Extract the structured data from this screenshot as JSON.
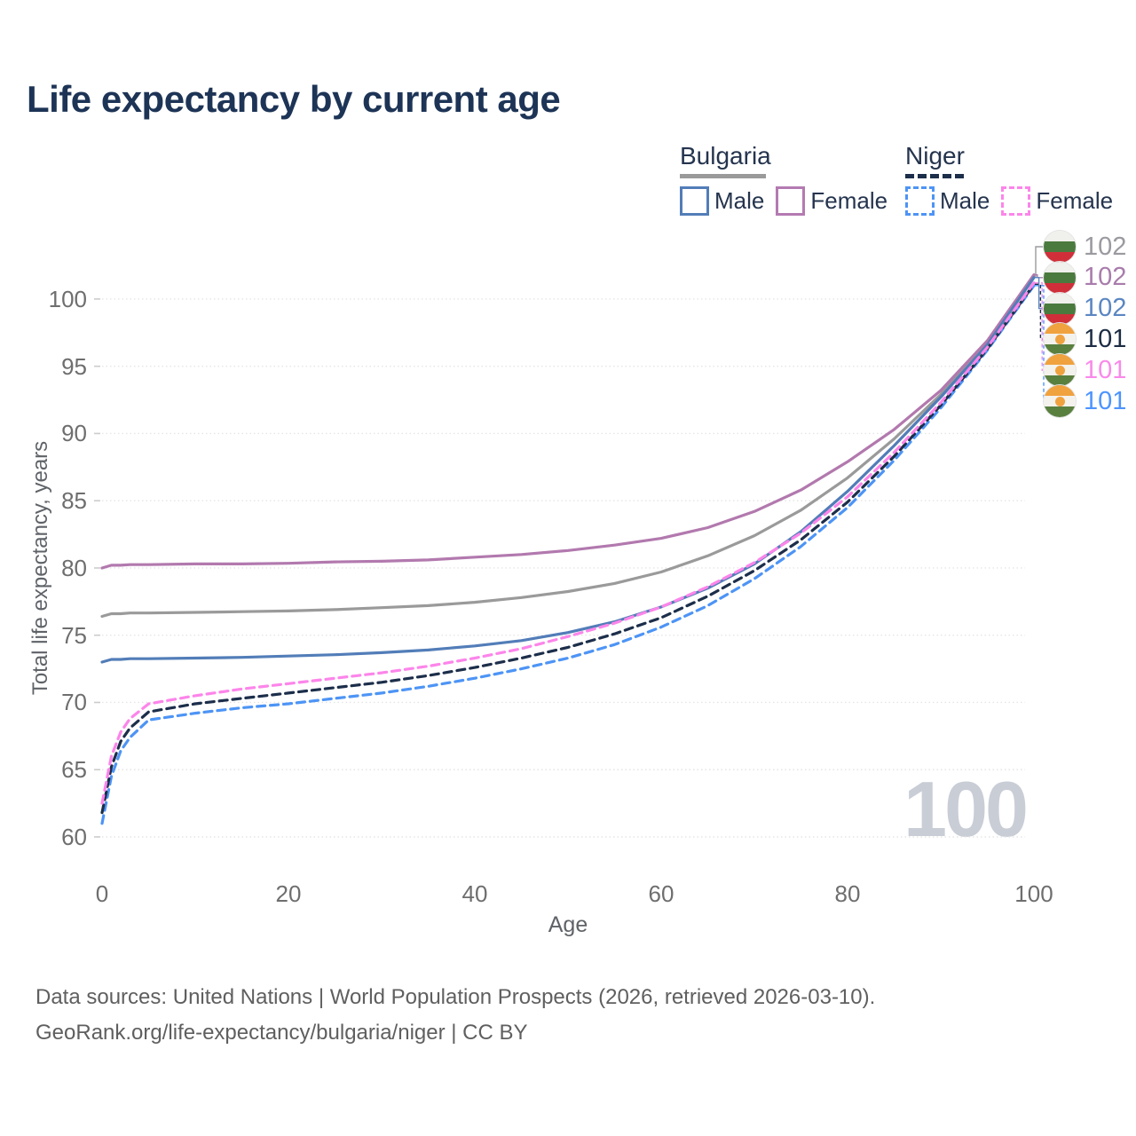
{
  "title": "Life expectancy by current age",
  "legend": {
    "groups": [
      {
        "label": "Bulgaria",
        "line_style": "solid",
        "line_color": "#9a9a9a",
        "items": [
          {
            "label": "Male",
            "color": "#527db8",
            "dashed": false
          },
          {
            "label": "Female",
            "color": "#b47ab2",
            "dashed": false
          }
        ]
      },
      {
        "label": "Niger",
        "line_style": "dashed",
        "line_color": "#1c2e4a",
        "items": [
          {
            "label": "Male",
            "color": "#4d94f5",
            "dashed": true
          },
          {
            "label": "Female",
            "color": "#fc85ea",
            "dashed": true
          }
        ]
      }
    ]
  },
  "end_labels": {
    "rows": [
      {
        "value": "102",
        "flag": "bulgaria",
        "color": "#9a9aa0",
        "series": "bulgaria_both"
      },
      {
        "value": "102",
        "flag": "bulgaria",
        "color": "#a87cab",
        "series": "bulgaria_female"
      },
      {
        "value": "102",
        "flag": "bulgaria",
        "color": "#5b86c2",
        "series": "bulgaria_male"
      },
      {
        "value": "101",
        "flag": "niger",
        "color": "#1d2d44",
        "series": "niger_both"
      },
      {
        "value": "101",
        "flag": "niger",
        "color": "#f98ae9",
        "series": "niger_female"
      },
      {
        "value": "101",
        "flag": "niger",
        "color": "#4d94ff",
        "series": "niger_male"
      }
    ]
  },
  "watermark": "100",
  "axes": {
    "y_label": "Total life expectancy, years",
    "x_label": "Age",
    "y_ticks": [
      100,
      95,
      90,
      85,
      80,
      75,
      70,
      65,
      60
    ],
    "x_ticks": [
      0,
      20,
      40,
      60,
      80,
      100
    ]
  },
  "footer": {
    "line1": "Data sources: United Nations | World Population Prospects (2026, retrieved 2026-03-10).",
    "line2": "GeoRank.org/life-expectancy/bulgaria/niger | CC BY"
  },
  "colors": {
    "title": "#1d3456",
    "axis_text": "#6e6e6e",
    "gridline": "#e5e5e5",
    "watermark": "#c9cdd6",
    "footer": "#5f5f5f"
  },
  "chart_data": {
    "type": "line",
    "title": "Life expectancy by current age",
    "xlabel": "Age",
    "ylabel": "Total life expectancy, years",
    "xlim": [
      0,
      100
    ],
    "ylim": [
      60,
      102.5
    ],
    "grid": true,
    "legend_position": "top-right",
    "x": [
      0,
      1,
      2,
      3,
      5,
      10,
      15,
      20,
      25,
      30,
      35,
      40,
      45,
      50,
      55,
      60,
      65,
      70,
      75,
      80,
      85,
      90,
      95,
      100
    ],
    "series": [
      {
        "key": "bulgaria_both",
        "name": "Bulgaria Both sexes",
        "color": "#9a9a9a",
        "dash": null,
        "values": [
          76.4,
          76.6,
          76.6,
          76.65,
          76.65,
          76.7,
          76.75,
          76.8,
          76.9,
          77.05,
          77.2,
          77.45,
          77.8,
          78.25,
          78.85,
          79.7,
          80.9,
          82.4,
          84.3,
          86.7,
          89.6,
          92.9,
          96.8,
          101.7
        ]
      },
      {
        "key": "bulgaria_female",
        "name": "Bulgaria Female",
        "color": "#b279ae",
        "dash": null,
        "values": [
          80.0,
          80.2,
          80.2,
          80.25,
          80.25,
          80.3,
          80.3,
          80.35,
          80.45,
          80.5,
          80.6,
          80.8,
          81.0,
          81.3,
          81.7,
          82.2,
          83.0,
          84.2,
          85.8,
          87.9,
          90.3,
          93.2,
          96.9,
          101.8
        ]
      },
      {
        "key": "bulgaria_male",
        "name": "Bulgaria Male",
        "color": "#527db8",
        "dash": null,
        "values": [
          73.0,
          73.2,
          73.2,
          73.25,
          73.25,
          73.3,
          73.35,
          73.45,
          73.55,
          73.7,
          73.9,
          74.2,
          74.6,
          75.2,
          76.0,
          77.1,
          78.5,
          80.3,
          82.7,
          85.7,
          89.1,
          92.7,
          96.6,
          101.6
        ]
      },
      {
        "key": "niger_male",
        "name": "Niger Male",
        "color": "#4d94f5",
        "dash": [
          9,
          6
        ],
        "values": [
          61.0,
          64.5,
          66.4,
          67.4,
          68.7,
          69.2,
          69.6,
          69.9,
          70.3,
          70.7,
          71.2,
          71.8,
          72.5,
          73.3,
          74.3,
          75.6,
          77.2,
          79.2,
          81.6,
          84.5,
          88.0,
          91.9,
          96.2,
          101.0
        ]
      },
      {
        "key": "niger_both",
        "name": "Niger Both sexes",
        "color": "#1c2e4a",
        "dash": [
          9,
          6
        ],
        "values": [
          61.8,
          65.2,
          67.1,
          68.1,
          69.3,
          69.9,
          70.3,
          70.7,
          71.1,
          71.5,
          72.0,
          72.6,
          73.3,
          74.1,
          75.1,
          76.3,
          77.9,
          79.8,
          82.1,
          84.9,
          88.3,
          92.1,
          96.3,
          101.1
        ]
      },
      {
        "key": "niger_female",
        "name": "Niger Female",
        "color": "#fc85ea",
        "dash": [
          9,
          6
        ],
        "values": [
          62.5,
          66.0,
          67.8,
          68.8,
          69.9,
          70.5,
          71.0,
          71.4,
          71.8,
          72.2,
          72.7,
          73.3,
          74.0,
          74.9,
          75.9,
          77.1,
          78.6,
          80.4,
          82.6,
          85.3,
          88.6,
          92.3,
          96.4,
          101.2
        ]
      }
    ]
  }
}
